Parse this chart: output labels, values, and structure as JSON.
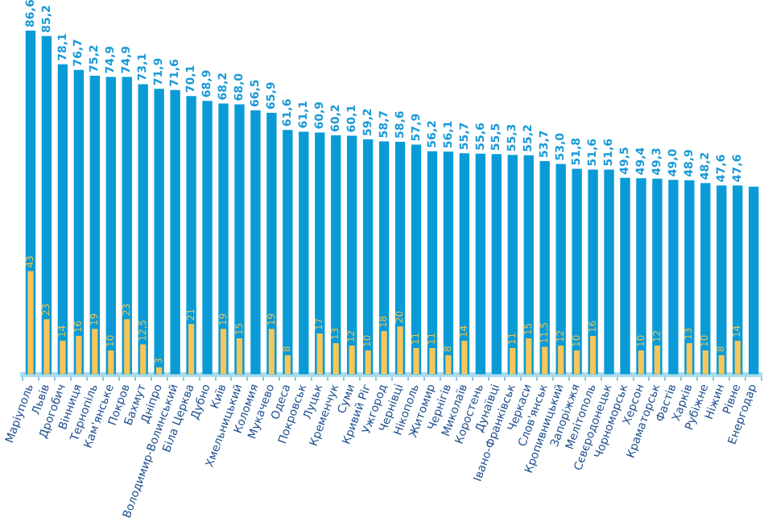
{
  "chart_data": {
    "type": "bar",
    "categories": [
      "Маріуполь",
      "Львів",
      "Дрогобич",
      "Вінниця",
      "Тернопіль",
      "Кам'янське",
      "Покров",
      "Бахмут",
      "Дніпро",
      "Володимир-Волинський",
      "Біла Церква",
      "Дубно",
      "Київ",
      "Хмельницький",
      "Коломия",
      "Мукачево",
      "Одеса",
      "Покровськ",
      "Луцьк",
      "Кременчук",
      "Суми",
      "Кривий Ріг",
      "Ужгород",
      "Чернівці",
      "Нікополь",
      "Житомир",
      "Чернігів",
      "Миколаїв",
      "Коростень",
      "Дунаївці",
      "Івано-Франківськ",
      "Черкаси",
      "Слов'янськ",
      "Кропивницький",
      "Запоріжжя",
      "Мелітополь",
      "Сєвєродонецьк",
      "Чорноморськ",
      "Херсон",
      "Краматорськ",
      "Фастів",
      "Харків",
      "Рубіжне",
      "Ніжин",
      "Рівне",
      "Енергодар"
    ],
    "series": [
      {
        "color": "#0a9bd7",
        "values": [
          86.6,
          85.2,
          78.1,
          76.7,
          75.2,
          74.9,
          74.9,
          73.1,
          71.9,
          71.6,
          70.1,
          68.9,
          68.2,
          68.0,
          66.5,
          65.9,
          61.6,
          61.1,
          60.9,
          60.2,
          60.1,
          59.2,
          58.7,
          58.6,
          57.9,
          56.2,
          56.1,
          55.7,
          55.6,
          55.5,
          55.3,
          55.2,
          53.7,
          53.0,
          51.8,
          51.6,
          51.6,
          49.5,
          49.4,
          49.3,
          49.0,
          48.9,
          48.2,
          47.6,
          47.6,
          47.3
        ],
        "value_labels": [
          "86,6",
          "85,2",
          "78,1",
          "76,7",
          "75,2",
          "74,9",
          "74,9",
          "73,1",
          "71,9",
          "71,6",
          "70,1",
          "68,9",
          "68,2",
          "68,0",
          "66,5",
          "65,9",
          "61,6",
          "61,1",
          "60,9",
          "60,2",
          "60,1",
          "59,2",
          "58,7",
          "58,6",
          "57,9",
          "56,2",
          "56,1",
          "55,7",
          "55,6",
          "55,5",
          "55,3",
          "55,2",
          "53,7",
          "53,0",
          "51,8",
          "51,6",
          "51,6",
          "49,5",
          "49,4",
          "49,3",
          "49,0",
          "48,9",
          "48,2",
          "47,6",
          "47,6",
          null
        ]
      },
      {
        "color": "#f7c65a",
        "axis": "y2",
        "values": [
          43,
          23,
          14,
          16,
          19,
          10,
          23,
          12.5,
          3,
          null,
          21,
          null,
          19,
          15,
          null,
          19,
          8,
          null,
          17,
          13,
          12,
          10,
          18,
          20,
          11,
          11,
          8,
          14,
          null,
          null,
          11,
          15,
          11.5,
          12,
          10,
          16,
          null,
          null,
          10,
          12,
          null,
          13,
          10,
          8,
          14,
          null
        ],
        "value_labels": [
          "43",
          "23",
          "14",
          "16",
          "19",
          "10",
          "23",
          "12,5",
          "3",
          null,
          "21",
          null,
          "19",
          "15",
          null,
          "19",
          "8",
          null,
          "17",
          "13",
          "12",
          "10",
          "18",
          "20",
          "11",
          "11",
          "8",
          "14",
          null,
          null,
          "11",
          "15",
          "11,5",
          "12",
          "10",
          "16",
          null,
          null,
          "10",
          "12",
          null,
          "13",
          "10",
          "8",
          "14",
          null
        ]
      }
    ]
  }
}
